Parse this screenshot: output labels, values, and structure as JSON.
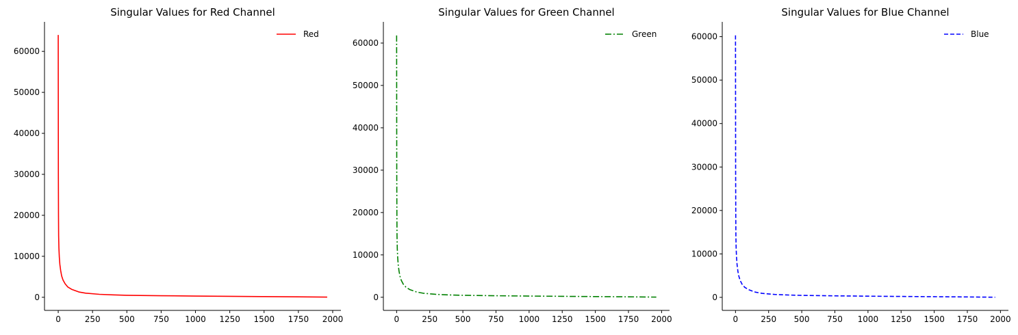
{
  "chart_data": [
    {
      "type": "line",
      "title": "Singular Values for Red Channel",
      "xlabel": "",
      "ylabel": "",
      "xlim": [
        -100,
        2060
      ],
      "ylim": [
        -3200,
        67200
      ],
      "xticks": [
        0,
        250,
        500,
        750,
        1000,
        1250,
        1500,
        1750,
        2000
      ],
      "yticks": [
        0,
        10000,
        20000,
        30000,
        40000,
        50000,
        60000
      ],
      "grid": false,
      "legend": "top-right",
      "series": [
        {
          "name": "Red",
          "color": "#ff0000",
          "linestyle": "solid",
          "x": [
            0,
            1,
            2,
            3,
            5,
            8,
            12,
            18,
            25,
            35,
            50,
            70,
            100,
            150,
            200,
            300,
            400,
            500,
            750,
            1000,
            1250,
            1500,
            1750,
            1960
          ],
          "y": [
            64000,
            30000,
            20000,
            15000,
            12000,
            9800,
            8000,
            6500,
            5200,
            4200,
            3300,
            2500,
            1900,
            1300,
            1000,
            720,
            580,
            480,
            380,
            300,
            230,
            170,
            110,
            40
          ]
        }
      ]
    },
    {
      "type": "line",
      "title": "Singular Values for Green Channel",
      "xlabel": "",
      "ylabel": "",
      "xlim": [
        -100,
        2060
      ],
      "ylim": [
        -3100,
        65000
      ],
      "xticks": [
        0,
        250,
        500,
        750,
        1000,
        1250,
        1500,
        1750,
        2000
      ],
      "yticks": [
        0,
        10000,
        20000,
        30000,
        40000,
        50000,
        60000
      ],
      "grid": false,
      "legend": "top-right",
      "series": [
        {
          "name": "Green",
          "color": "#008000",
          "linestyle": "dashdot",
          "x": [
            0,
            1,
            2,
            3,
            5,
            8,
            12,
            18,
            25,
            35,
            50,
            70,
            100,
            150,
            200,
            300,
            400,
            500,
            750,
            1000,
            1250,
            1500,
            1750,
            1960
          ],
          "y": [
            61800,
            29000,
            19500,
            14500,
            11500,
            9400,
            7700,
            6200,
            5000,
            4000,
            3100,
            2400,
            1800,
            1250,
            950,
            680,
            550,
            460,
            360,
            280,
            220,
            160,
            100,
            35
          ]
        }
      ]
    },
    {
      "type": "line",
      "title": "Singular Values for Blue Channel",
      "xlabel": "",
      "ylabel": "",
      "xlim": [
        -100,
        2060
      ],
      "ylim": [
        -3000,
        63400
      ],
      "xticks": [
        0,
        250,
        500,
        750,
        1000,
        1250,
        1500,
        1750,
        2000
      ],
      "yticks": [
        0,
        10000,
        20000,
        30000,
        40000,
        50000,
        60000
      ],
      "grid": false,
      "legend": "top-right",
      "series": [
        {
          "name": "Blue",
          "color": "#0000ff",
          "linestyle": "dashed",
          "x": [
            0,
            1,
            2,
            3,
            5,
            8,
            12,
            18,
            25,
            35,
            50,
            70,
            100,
            150,
            200,
            300,
            400,
            500,
            750,
            1000,
            1250,
            1500,
            1750,
            1960
          ],
          "y": [
            60300,
            28500,
            19000,
            14000,
            11200,
            9100,
            7500,
            6000,
            4900,
            3900,
            3000,
            2300,
            1750,
            1200,
            920,
            660,
            540,
            450,
            350,
            270,
            210,
            150,
            95,
            30
          ]
        }
      ]
    }
  ]
}
